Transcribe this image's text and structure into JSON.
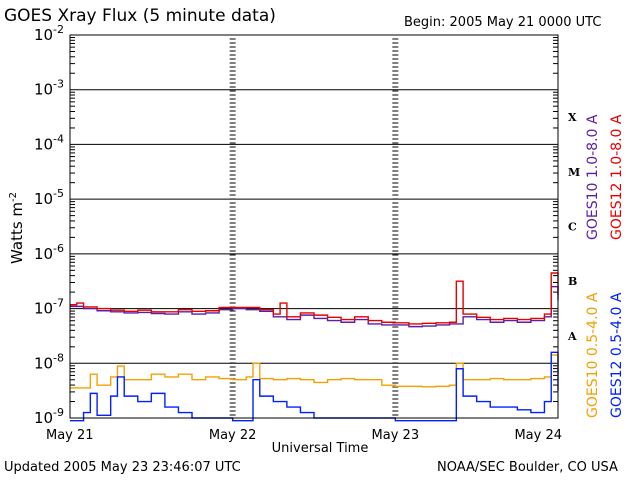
{
  "title": "GOES Xray Flux (5 minute data)",
  "begin_text": "Begin:  2005 May 21 0000 UTC",
  "updated_text": "Updated 2005 May 23 23:46:07 UTC",
  "credit_text": "NOAA/SEC Boulder, CO USA",
  "colors": {
    "goes10_long": "#5a1fa8",
    "goes12_long": "#e60000",
    "goes10_short": "#f5a000",
    "goes12_short": "#0020ff"
  },
  "chart_data": {
    "type": "line",
    "title": "GOES Xray Flux (5 minute data)",
    "xlabel": "Universal Time",
    "ylabel": "Watts m-2",
    "yscale": "log",
    "ylim": [
      1e-09,
      0.01
    ],
    "xlim": [
      0,
      72
    ],
    "x_unit": "hours since 2005 May 21 0000 UTC",
    "grid": true,
    "x_ticks": [
      {
        "x": 0,
        "label": "May 21"
      },
      {
        "x": 24,
        "label": "May 22"
      },
      {
        "x": 48,
        "label": "May 23"
      },
      {
        "x": 72,
        "label": "May 24"
      }
    ],
    "y_ticks": [
      {
        "exp": -2,
        "base": "10",
        "sup": "-2"
      },
      {
        "exp": -3,
        "base": "10",
        "sup": "-3"
      },
      {
        "exp": -4,
        "base": "10",
        "sup": "-4"
      },
      {
        "exp": -5,
        "base": "10",
        "sup": "-5"
      },
      {
        "exp": -6,
        "base": "10",
        "sup": "-6"
      },
      {
        "exp": -7,
        "base": "10",
        "sup": "-7"
      },
      {
        "exp": -8,
        "base": "10",
        "sup": "-8"
      },
      {
        "exp": -9,
        "base": "10",
        "sup": "-9"
      }
    ],
    "flare_classes": [
      {
        "label": "X",
        "exp": -3.5
      },
      {
        "label": "M",
        "exp": -4.5
      },
      {
        "label": "C",
        "exp": -5.5
      },
      {
        "label": "B",
        "exp": -6.5
      },
      {
        "label": "A",
        "exp": -7.5
      }
    ],
    "series": [
      {
        "name": "GOES10 1.0-8.0 A",
        "color_key": "goes10_long",
        "points": [
          [
            0,
            -6.96
          ],
          [
            2,
            -7.0
          ],
          [
            4,
            -7.04
          ],
          [
            6,
            -7.06
          ],
          [
            8,
            -7.08
          ],
          [
            10,
            -7.07
          ],
          [
            12,
            -7.09
          ],
          [
            14,
            -7.1
          ],
          [
            16,
            -7.06
          ],
          [
            18,
            -7.1
          ],
          [
            20,
            -7.08
          ],
          [
            22,
            -7.02
          ],
          [
            24,
            -7.0
          ],
          [
            26,
            -7.02
          ],
          [
            28,
            -7.05
          ],
          [
            30,
            -7.15
          ],
          [
            32,
            -7.2
          ],
          [
            34,
            -7.12
          ],
          [
            36,
            -7.18
          ],
          [
            38,
            -7.22
          ],
          [
            40,
            -7.25
          ],
          [
            42,
            -7.2
          ],
          [
            44,
            -7.28
          ],
          [
            46,
            -7.3
          ],
          [
            48,
            -7.3
          ],
          [
            50,
            -7.33
          ],
          [
            52,
            -7.32
          ],
          [
            54,
            -7.3
          ],
          [
            56,
            -7.28
          ],
          [
            58,
            -7.15
          ],
          [
            60,
            -7.2
          ],
          [
            62,
            -7.25
          ],
          [
            64,
            -7.22
          ],
          [
            66,
            -7.25
          ],
          [
            68,
            -7.22
          ],
          [
            70,
            -7.15
          ],
          [
            71,
            -6.6
          ],
          [
            72,
            -6.85
          ]
        ]
      },
      {
        "name": "GOES12 1.0-8.0 A",
        "color_key": "goes12_long",
        "points": [
          [
            0,
            -6.93
          ],
          [
            1,
            -6.9
          ],
          [
            2,
            -6.97
          ],
          [
            4,
            -7.0
          ],
          [
            6,
            -7.03
          ],
          [
            8,
            -7.05
          ],
          [
            10,
            -7.03
          ],
          [
            12,
            -7.06
          ],
          [
            14,
            -7.06
          ],
          [
            16,
            -7.02
          ],
          [
            18,
            -7.05
          ],
          [
            20,
            -7.04
          ],
          [
            22,
            -6.98
          ],
          [
            24,
            -6.98
          ],
          [
            26,
            -6.98
          ],
          [
            28,
            -7.02
          ],
          [
            30,
            -7.1
          ],
          [
            31,
            -6.9
          ],
          [
            32,
            -7.15
          ],
          [
            34,
            -7.08
          ],
          [
            36,
            -7.12
          ],
          [
            38,
            -7.16
          ],
          [
            40,
            -7.2
          ],
          [
            42,
            -7.15
          ],
          [
            44,
            -7.22
          ],
          [
            46,
            -7.25
          ],
          [
            48,
            -7.26
          ],
          [
            50,
            -7.28
          ],
          [
            52,
            -7.27
          ],
          [
            54,
            -7.26
          ],
          [
            56,
            -7.25
          ],
          [
            57,
            -6.5
          ],
          [
            58,
            -7.1
          ],
          [
            60,
            -7.16
          ],
          [
            62,
            -7.2
          ],
          [
            64,
            -7.18
          ],
          [
            66,
            -7.2
          ],
          [
            68,
            -7.18
          ],
          [
            70,
            -7.1
          ],
          [
            71,
            -6.35
          ],
          [
            72,
            -6.75
          ]
        ]
      },
      {
        "name": "GOES10 0.5-4.0 A",
        "color_key": "goes10_short",
        "points": [
          [
            0,
            -8.45
          ],
          [
            2,
            -8.45
          ],
          [
            3,
            -8.2
          ],
          [
            4,
            -8.4
          ],
          [
            6,
            -8.25
          ],
          [
            7,
            -8.05
          ],
          [
            8,
            -8.3
          ],
          [
            10,
            -8.3
          ],
          [
            12,
            -8.2
          ],
          [
            14,
            -8.25
          ],
          [
            16,
            -8.2
          ],
          [
            18,
            -8.3
          ],
          [
            20,
            -8.25
          ],
          [
            22,
            -8.28
          ],
          [
            24,
            -8.3
          ],
          [
            26,
            -8.25
          ],
          [
            27,
            -8.0
          ],
          [
            28,
            -8.28
          ],
          [
            30,
            -8.3
          ],
          [
            32,
            -8.28
          ],
          [
            34,
            -8.3
          ],
          [
            36,
            -8.35
          ],
          [
            38,
            -8.3
          ],
          [
            40,
            -8.28
          ],
          [
            42,
            -8.3
          ],
          [
            44,
            -8.3
          ],
          [
            46,
            -8.4
          ],
          [
            48,
            -8.42
          ],
          [
            50,
            -8.42
          ],
          [
            52,
            -8.43
          ],
          [
            54,
            -8.42
          ],
          [
            56,
            -8.4
          ],
          [
            57,
            -8.0
          ],
          [
            58,
            -8.3
          ],
          [
            60,
            -8.3
          ],
          [
            62,
            -8.28
          ],
          [
            64,
            -8.3
          ],
          [
            66,
            -8.3
          ],
          [
            68,
            -8.28
          ],
          [
            70,
            -8.25
          ],
          [
            71,
            -7.85
          ],
          [
            72,
            -8.2
          ]
        ]
      },
      {
        "name": "GOES12 0.5-4.0 A",
        "color_key": "goes12_short",
        "points": [
          [
            0,
            -9.05
          ],
          [
            2,
            -8.9
          ],
          [
            3,
            -8.55
          ],
          [
            4,
            -8.95
          ],
          [
            6,
            -8.6
          ],
          [
            7,
            -8.25
          ],
          [
            8,
            -8.6
          ],
          [
            10,
            -8.7
          ],
          [
            12,
            -8.55
          ],
          [
            14,
            -8.8
          ],
          [
            16,
            -8.9
          ],
          [
            18,
            -9.0
          ],
          [
            24,
            -9.05
          ],
          [
            27,
            -8.3
          ],
          [
            28,
            -8.6
          ],
          [
            30,
            -8.7
          ],
          [
            32,
            -8.8
          ],
          [
            34,
            -8.9
          ],
          [
            36,
            -9.0
          ],
          [
            48,
            -9.05
          ],
          [
            56,
            -9.05
          ],
          [
            57,
            -8.1
          ],
          [
            58,
            -8.6
          ],
          [
            60,
            -8.7
          ],
          [
            62,
            -8.8
          ],
          [
            64,
            -8.8
          ],
          [
            66,
            -8.85
          ],
          [
            68,
            -8.9
          ],
          [
            70,
            -8.7
          ],
          [
            71,
            -7.8
          ],
          [
            72,
            -8.5
          ]
        ]
      }
    ]
  }
}
